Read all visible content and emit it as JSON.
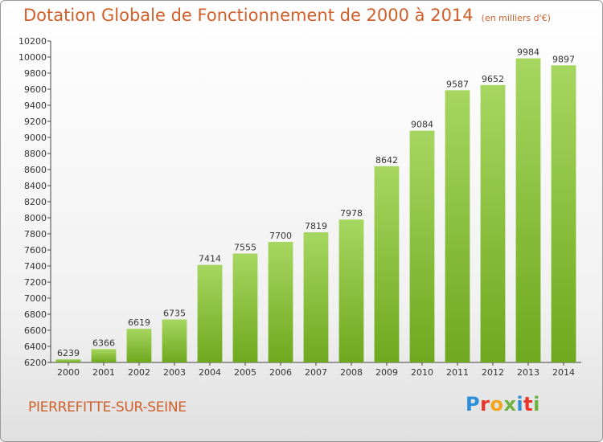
{
  "header": {
    "title": "Dotation Globale de Fonctionnement de 2000 à 2014",
    "unit_note": "(en milliers d'€)"
  },
  "footer": {
    "commune": "PIERREFITTE-SUR-SEINE",
    "brand": "Proxiti"
  },
  "colors": {
    "title": "#d0602a",
    "bar_light": "#a6d660",
    "bar_dark": "#6fa81e",
    "brand_letters": [
      "#2e8fd8",
      "#e8342a",
      "#f2a51a",
      "#6cb33e",
      "#2e8fd8",
      "#e8342a",
      "#6cb33e"
    ]
  },
  "chart_data": {
    "type": "bar",
    "title": "Dotation Globale de Fonctionnement de 2000 à 2014",
    "subtitle": "(en milliers d'€)",
    "xlabel": "",
    "ylabel": "",
    "categories": [
      "2000",
      "2001",
      "2002",
      "2003",
      "2004",
      "2005",
      "2006",
      "2007",
      "2008",
      "2009",
      "2010",
      "2011",
      "2012",
      "2013",
      "2014"
    ],
    "values": [
      6239,
      6366,
      6619,
      6735,
      7414,
      7555,
      7700,
      7819,
      7978,
      8642,
      9084,
      9587,
      9652,
      9984,
      9897
    ],
    "ylim": [
      6200,
      10200
    ],
    "yticks": [
      6200,
      6400,
      6600,
      6800,
      7000,
      7200,
      7400,
      7600,
      7800,
      8000,
      8200,
      8400,
      8600,
      8800,
      9000,
      9200,
      9400,
      9600,
      9800,
      10000,
      10200
    ],
    "grid": false,
    "legend": "none"
  }
}
